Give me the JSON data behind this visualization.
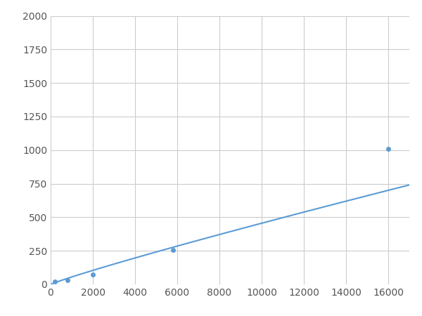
{
  "x": [
    200,
    800,
    2000,
    5800,
    16000
  ],
  "y": [
    20,
    30,
    75,
    255,
    1010
  ],
  "line_color": "#5b9bd5",
  "marker_color": "#5b9bd5",
  "marker_size": 5,
  "xlim": [
    0,
    17000
  ],
  "ylim": [
    0,
    2000
  ],
  "xticks": [
    0,
    2000,
    4000,
    6000,
    8000,
    10000,
    12000,
    14000,
    16000
  ],
  "yticks": [
    0,
    250,
    500,
    750,
    1000,
    1250,
    1500,
    1750,
    2000
  ],
  "grid_color": "#cccccc",
  "background_color": "#ffffff",
  "figsize": [
    6.0,
    4.5
  ],
  "dpi": 100
}
